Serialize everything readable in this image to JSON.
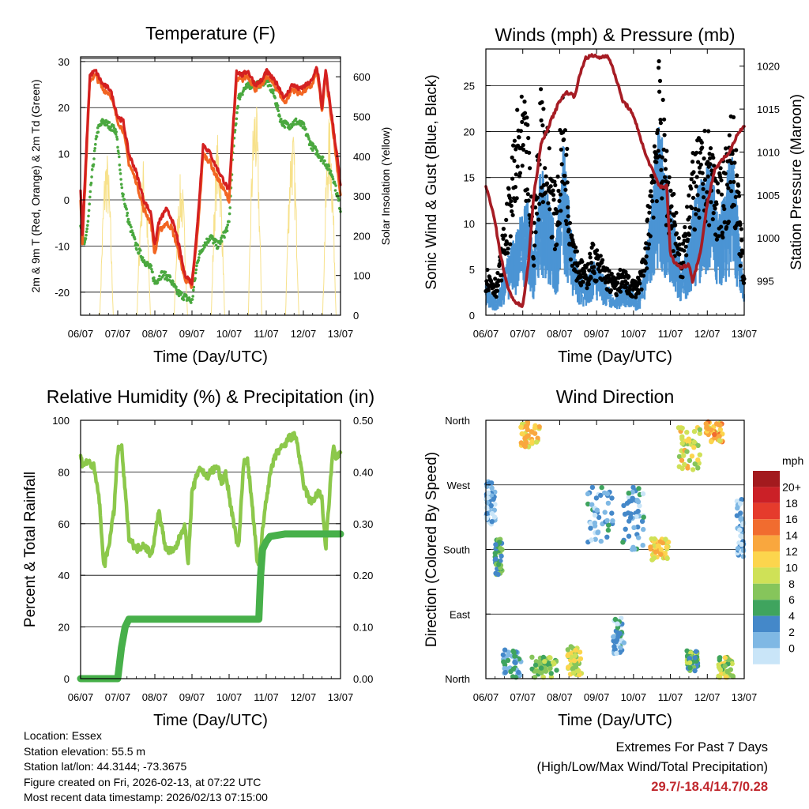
{
  "colors": {
    "t2m": "#f26522",
    "t9m": "#d42020",
    "td": "#4aa83f",
    "solar": "#f7e18a",
    "wind": "#4b94d4",
    "gust": "#000000",
    "pressure": "#a61c24",
    "rh": "#8cc84b",
    "precip": "#47b04a",
    "extremes": "#c0272d"
  },
  "chart_data": [
    {
      "id": "temperature",
      "type": "line",
      "title": "Temperature (F)",
      "xlabel": "Time (Day/UTC)",
      "ylabel": "2m & 9m T (Red, Orange) & 2m Td (Green)",
      "y2label": "Solar Insolation (Yellow)",
      "x_ticks": [
        "06/07",
        "07/07",
        "08/07",
        "09/07",
        "10/07",
        "11/07",
        "12/07",
        "13/07"
      ],
      "xlim": [
        0,
        7
      ],
      "ylim": [
        -25,
        31
      ],
      "y_ticks": [
        -20,
        -10,
        0,
        10,
        20,
        30
      ],
      "y2lim": [
        0,
        650
      ],
      "y2_ticks": [
        0,
        100,
        200,
        300,
        400,
        500,
        600
      ],
      "grid_y": [
        -20,
        -10,
        0,
        10,
        20,
        30
      ],
      "series": [
        {
          "name": "9m T",
          "color": "t9m",
          "axis": "left",
          "x": [
            0,
            0.05,
            0.15,
            0.25,
            0.4,
            0.6,
            0.8,
            0.9,
            1.0,
            1.15,
            1.3,
            1.5,
            1.7,
            1.9,
            2.0,
            2.1,
            2.3,
            2.45,
            2.6,
            2.8,
            3.0,
            3.15,
            3.3,
            3.5,
            3.6,
            3.8,
            4.0,
            4.1,
            4.2,
            4.35,
            4.5,
            4.7,
            4.9,
            5.0,
            5.1,
            5.3,
            5.5,
            5.7,
            5.9,
            6.1,
            6.25,
            6.35,
            6.4,
            6.5,
            6.6,
            6.8,
            6.9,
            7.0
          ],
          "y": [
            2,
            -8,
            10,
            27,
            28,
            25,
            24,
            21,
            18,
            17,
            10,
            6,
            0,
            -3,
            -10,
            -5,
            -2,
            -4,
            -8,
            -16,
            -18,
            -5,
            12,
            10,
            8,
            5,
            2,
            15,
            28,
            27,
            28,
            25,
            26,
            28,
            27,
            25,
            22,
            25,
            24,
            25,
            26,
            29,
            27,
            20,
            28,
            16,
            10,
            3
          ]
        },
        {
          "name": "2m T",
          "color": "t2m",
          "axis": "left",
          "x": [
            0,
            0.05,
            0.15,
            0.25,
            0.4,
            0.6,
            0.8,
            0.9,
            1.0,
            1.15,
            1.3,
            1.5,
            1.7,
            1.9,
            2.0,
            2.1,
            2.3,
            2.45,
            2.6,
            2.8,
            3.0,
            3.15,
            3.3,
            3.5,
            3.6,
            3.8,
            4.0,
            4.1,
            4.2,
            4.35,
            4.5,
            4.7,
            4.9,
            5.0,
            5.1,
            5.3,
            5.5,
            5.7,
            5.9,
            6.1,
            6.25,
            6.35,
            6.4,
            6.5,
            6.6,
            6.8,
            6.9,
            7.0
          ],
          "y": [
            0,
            -9,
            8,
            26,
            27,
            24,
            23,
            20,
            17,
            15,
            8,
            4,
            -2,
            -5,
            -12,
            -7,
            -5,
            -6,
            -10,
            -17,
            -19,
            -7,
            10,
            8,
            6,
            3,
            0,
            14,
            26,
            26,
            27,
            24,
            25,
            27,
            26,
            24,
            21,
            24,
            23,
            24,
            25,
            28,
            26,
            19,
            27,
            15,
            8,
            1
          ]
        },
        {
          "name": "2m Td",
          "color": "td",
          "axis": "left",
          "x": [
            0,
            0.1,
            0.2,
            0.3,
            0.45,
            0.6,
            0.8,
            0.95,
            1.0,
            1.1,
            1.3,
            1.5,
            1.7,
            1.9,
            2.0,
            2.2,
            2.4,
            2.6,
            2.8,
            3.0,
            3.15,
            3.3,
            3.5,
            3.7,
            3.9,
            4.0,
            4.1,
            4.25,
            4.4,
            4.6,
            4.8,
            5.0,
            5.2,
            5.4,
            5.6,
            5.8,
            6.0,
            6.2,
            6.4,
            6.6,
            6.8,
            7.0
          ],
          "y": [
            -5,
            -10,
            -5,
            5,
            15,
            17,
            16,
            15,
            12,
            3,
            -5,
            -10,
            -13,
            -15,
            -18,
            -16,
            -17,
            -20,
            -21,
            -22,
            -13,
            -10,
            -8,
            -10,
            -7,
            -5,
            10,
            22,
            24,
            25,
            25,
            26,
            23,
            17,
            16,
            17,
            16,
            12,
            10,
            8,
            5,
            -2
          ]
        },
        {
          "name": "Solar Insolation",
          "color": "solar",
          "axis": "right",
          "peaks": [
            {
              "day": 0.7,
              "value": 420
            },
            {
              "day": 1.7,
              "value": 400
            },
            {
              "day": 2.7,
              "value": 360
            },
            {
              "day": 3.7,
              "value": 460
            },
            {
              "day": 4.7,
              "value": 560
            },
            {
              "day": 5.7,
              "value": 480
            },
            {
              "day": 6.7,
              "value": 500
            }
          ]
        }
      ]
    },
    {
      "id": "winds",
      "type": "scatter+line",
      "title": "Winds (mph) & Pressure (mb)",
      "xlabel": "Time (Day/UTC)",
      "ylabel": "Sonic Wind & Gust (Blue, Black)",
      "y2label": "Station Pressure (Maroon)",
      "x_ticks": [
        "06/07",
        "07/07",
        "08/07",
        "09/07",
        "10/07",
        "11/07",
        "12/07",
        "13/07"
      ],
      "xlim": [
        0,
        7
      ],
      "ylim": [
        0,
        29
      ],
      "y_ticks": [
        0,
        5,
        10,
        15,
        20,
        25
      ],
      "y2lim": [
        991,
        1022
      ],
      "y2_ticks": [
        995,
        1000,
        1005,
        1010,
        1015,
        1020
      ],
      "grid_y": [
        5,
        10,
        15,
        20,
        25
      ],
      "series": [
        {
          "name": "Sonic Wind",
          "color": "wind",
          "axis": "left",
          "x": [
            0,
            0.3,
            0.6,
            0.9,
            1.1,
            1.3,
            1.5,
            1.7,
            1.9,
            2.1,
            2.3,
            2.5,
            2.7,
            2.9,
            3.1,
            3.3,
            3.5,
            3.7,
            3.9,
            4.1,
            4.3,
            4.5,
            4.7,
            4.9,
            5.1,
            5.3,
            5.5,
            5.7,
            5.9,
            6.1,
            6.3,
            6.5,
            6.7,
            6.9,
            7.0
          ],
          "y": [
            2,
            1,
            4,
            6,
            8,
            4,
            10,
            8,
            5,
            11,
            6,
            3,
            2,
            4,
            3,
            2,
            1,
            2,
            2,
            1,
            3,
            8,
            13,
            9,
            6,
            3,
            5,
            8,
            9,
            10,
            6,
            9,
            11,
            4,
            2
          ]
        },
        {
          "name": "Gust",
          "color": "gust",
          "axis": "left",
          "x": [
            0,
            0.3,
            0.6,
            0.9,
            1.1,
            1.3,
            1.5,
            1.7,
            1.9,
            2.1,
            2.3,
            2.5,
            2.7,
            2.9,
            3.1,
            3.3,
            3.5,
            3.7,
            3.9,
            4.1,
            4.3,
            4.5,
            4.7,
            4.9,
            5.1,
            5.3,
            5.5,
            5.7,
            5.9,
            6.1,
            6.3,
            6.5,
            6.7,
            6.9,
            7.0
          ],
          "y": [
            4,
            3,
            10,
            18,
            17,
            8,
            20,
            15,
            10,
            19,
            9,
            5,
            4,
            6,
            5,
            4,
            3,
            4,
            3,
            3,
            5,
            14,
            21,
            14,
            10,
            5,
            12,
            14,
            15,
            15,
            11,
            14,
            17,
            8,
            3
          ]
        },
        {
          "name": "Station Pressure",
          "color": "pressure",
          "axis": "right",
          "x": [
            0,
            0.2,
            0.4,
            0.6,
            0.8,
            1.0,
            1.15,
            1.3,
            1.5,
            1.8,
            2.0,
            2.2,
            2.4,
            2.55,
            2.7,
            2.9,
            3.1,
            3.3,
            3.5,
            3.7,
            3.9,
            4.1,
            4.3,
            4.5,
            4.7,
            4.9,
            5.0,
            5.15,
            5.3,
            5.5,
            5.6,
            5.8,
            6.0,
            6.2,
            6.4,
            6.6,
            6.8,
            7.0
          ],
          "y": [
            1006,
            1003,
            998,
            994,
            992.5,
            992,
            997,
            1005,
            1011,
            1014,
            1016,
            1017,
            1016.5,
            1019,
            1021,
            1021.2,
            1021,
            1021.3,
            1019,
            1016,
            1015,
            1013,
            1010,
            1008,
            1006,
            1006,
            998,
            997,
            996.5,
            997,
            995,
            998,
            1004,
            1008,
            1009,
            1010,
            1012,
            1013
          ]
        }
      ]
    },
    {
      "id": "humidity",
      "type": "line",
      "title": "Relative Humidity (%) & Precipitation (in)",
      "xlabel": "Time (Day/UTC)",
      "ylabel": "Percent & Total Rainfall",
      "x_ticks": [
        "06/07",
        "07/07",
        "08/07",
        "09/07",
        "10/07",
        "11/07",
        "12/07",
        "13/07"
      ],
      "xlim": [
        0,
        7
      ],
      "ylim": [
        0,
        100
      ],
      "y_ticks": [
        0,
        20,
        40,
        60,
        80,
        100
      ],
      "y2lim": [
        0,
        0.5
      ],
      "y2_ticks": [
        "0.00",
        "0.10",
        "0.20",
        "0.30",
        "0.40",
        "0.50"
      ],
      "grid_y": [
        0,
        20,
        40,
        60,
        80,
        100
      ],
      "series": [
        {
          "name": "Relative Humidity",
          "color": "rh",
          "axis": "left",
          "x": [
            0,
            0.05,
            0.2,
            0.35,
            0.5,
            0.6,
            0.65,
            0.8,
            0.9,
            1.0,
            1.1,
            1.3,
            1.5,
            1.7,
            1.9,
            2.0,
            2.1,
            2.3,
            2.5,
            2.6,
            2.8,
            2.9,
            3.0,
            3.2,
            3.4,
            3.5,
            3.7,
            3.8,
            3.9,
            4.1,
            4.25,
            4.4,
            4.5,
            4.6,
            4.7,
            4.75,
            4.8,
            5.0,
            5.15,
            5.3,
            5.5,
            5.6,
            5.8,
            5.9,
            6.0,
            6.2,
            6.4,
            6.5,
            6.6,
            6.8,
            6.9,
            7.0
          ],
          "y": [
            86,
            83,
            84,
            82,
            70,
            48,
            44,
            55,
            65,
            88,
            90,
            55,
            50,
            52,
            48,
            55,
            65,
            50,
            49,
            52,
            60,
            45,
            72,
            82,
            78,
            80,
            82,
            75,
            80,
            62,
            50,
            85,
            84,
            70,
            55,
            45,
            44,
            70,
            82,
            88,
            90,
            93,
            94,
            85,
            75,
            68,
            72,
            70,
            50,
            90,
            85,
            88
          ]
        },
        {
          "name": "Total Precipitation",
          "color": "precip",
          "axis": "right",
          "x": [
            0,
            0.5,
            1.0,
            1.1,
            1.2,
            1.3,
            2.0,
            3.0,
            4.0,
            4.8,
            4.85,
            4.9,
            5.0,
            5.1,
            5.5,
            6.0,
            6.5,
            7.0
          ],
          "y": [
            0,
            0,
            0,
            0.06,
            0.1,
            0.115,
            0.115,
            0.115,
            0.115,
            0.115,
            0.2,
            0.25,
            0.265,
            0.275,
            0.28,
            0.28,
            0.28,
            0.28
          ]
        }
      ]
    },
    {
      "id": "direction",
      "type": "scatter",
      "title": "Wind Direction",
      "xlabel": "Time (Day/UTC)",
      "ylabel": "Direction (Colored By Speed)",
      "x_ticks": [
        "06/07",
        "07/07",
        "08/07",
        "09/07",
        "10/07",
        "11/07",
        "12/07",
        "13/07"
      ],
      "xlim": [
        0,
        7
      ],
      "ylim": [
        0,
        360
      ],
      "y_ticks": [
        {
          "deg": 0,
          "label": "North"
        },
        {
          "deg": 90,
          "label": "East"
        },
        {
          "deg": 180,
          "label": "South"
        },
        {
          "deg": 270,
          "label": "West"
        },
        {
          "deg": 360,
          "label": "North"
        }
      ],
      "grid_y": [
        90,
        180,
        270
      ],
      "clusters": [
        {
          "day": 0.1,
          "dir": 245,
          "spread_x": 0.15,
          "spread_y": 30,
          "speed": 2
        },
        {
          "day": 0.35,
          "dir": 170,
          "spread_x": 0.1,
          "spread_y": 25,
          "speed": 6
        },
        {
          "day": 0.7,
          "dir": 20,
          "spread_x": 0.25,
          "spread_y": 20,
          "speed": 4
        },
        {
          "day": 1.2,
          "dir": 340,
          "spread_x": 0.25,
          "spread_y": 20,
          "speed": 12
        },
        {
          "day": 1.6,
          "dir": 15,
          "spread_x": 0.35,
          "spread_y": 15,
          "speed": 8
        },
        {
          "day": 2.4,
          "dir": 25,
          "spread_x": 0.2,
          "spread_y": 20,
          "speed": 10
        },
        {
          "day": 3.1,
          "dir": 230,
          "spread_x": 0.35,
          "spread_y": 40,
          "speed": 3
        },
        {
          "day": 3.6,
          "dir": 60,
          "spread_x": 0.15,
          "spread_y": 25,
          "speed": 3
        },
        {
          "day": 4.0,
          "dir": 225,
          "spread_x": 0.3,
          "spread_y": 45,
          "speed": 3
        },
        {
          "day": 4.7,
          "dir": 180,
          "spread_x": 0.25,
          "spread_y": 15,
          "speed": 12
        },
        {
          "day": 5.5,
          "dir": 320,
          "spread_x": 0.3,
          "spread_y": 30,
          "speed": 11
        },
        {
          "day": 5.6,
          "dir": 25,
          "spread_x": 0.15,
          "spread_y": 15,
          "speed": 7
        },
        {
          "day": 6.2,
          "dir": 345,
          "spread_x": 0.25,
          "spread_y": 15,
          "speed": 13
        },
        {
          "day": 6.5,
          "dir": 15,
          "spread_x": 0.2,
          "spread_y": 15,
          "speed": 9
        },
        {
          "day": 6.9,
          "dir": 210,
          "spread_x": 0.1,
          "spread_y": 40,
          "speed": 2
        }
      ],
      "legend": {
        "title": "mph",
        "labels": [
          "20+",
          "18",
          "16",
          "14",
          "12",
          "10",
          "8",
          "6",
          "4",
          "2",
          "0"
        ],
        "colors": [
          "#a31a1e",
          "#cb2027",
          "#e53b2c",
          "#f16c2f",
          "#f9a73e",
          "#fcd54d",
          "#cfe157",
          "#86c55b",
          "#3fa45e",
          "#4488c9",
          "#7fb8e4",
          "#c9e5f8"
        ]
      }
    }
  ],
  "info": {
    "location": "Location: Essex",
    "elevation": "Station elevation: 55.5 m",
    "latlon": "Station lat/lon: 44.3144; -73.3675",
    "created": "Figure created on Fri, 2026-02-13, at 07:22 UTC",
    "recent": "Most recent data timestamp: 2026/02/13 07:15:00"
  },
  "extremes": {
    "title": "Extremes For Past 7 Days",
    "subtitle": "(High/Low/Max Wind/Total Precipitation)",
    "values": "29.7/-18.4/14.7/0.28"
  }
}
